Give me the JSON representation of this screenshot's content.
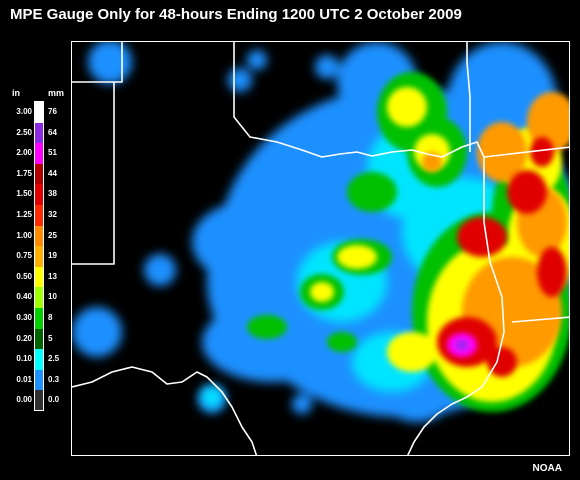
{
  "title": "MPE Gauge Only for 48-hours Ending 1200 UTC 2 October 2009",
  "legend": {
    "unit_in": "in",
    "unit_mm": "mm",
    "rows": [
      {
        "in": "3.00",
        "mm": "76",
        "color": "#ffffff"
      },
      {
        "in": "2.50",
        "mm": "64",
        "color": "#8a2be2"
      },
      {
        "in": "2.00",
        "mm": "51",
        "color": "#ff00ff"
      },
      {
        "in": "1.75",
        "mm": "44",
        "color": "#b00000"
      },
      {
        "in": "1.50",
        "mm": "38",
        "color": "#e00000"
      },
      {
        "in": "1.25",
        "mm": "32",
        "color": "#ff2a00"
      },
      {
        "in": "1.00",
        "mm": "25",
        "color": "#ff8c00"
      },
      {
        "in": "0.75",
        "mm": "19",
        "color": "#ffb000"
      },
      {
        "in": "0.50",
        "mm": "13",
        "color": "#ffff00"
      },
      {
        "in": "0.40",
        "mm": "10",
        "color": "#a0ff00"
      },
      {
        "in": "0.30",
        "mm": "8",
        "color": "#00d000"
      },
      {
        "in": "0.20",
        "mm": "5",
        "color": "#006400"
      },
      {
        "in": "0.10",
        "mm": "2.5",
        "color": "#00ffff"
      },
      {
        "in": "0.01",
        "mm": "0.3",
        "color": "#1e90ff"
      },
      {
        "in": "0.00",
        "mm": "0.0",
        "color": "#303030"
      }
    ]
  },
  "credit": "NOAA"
}
